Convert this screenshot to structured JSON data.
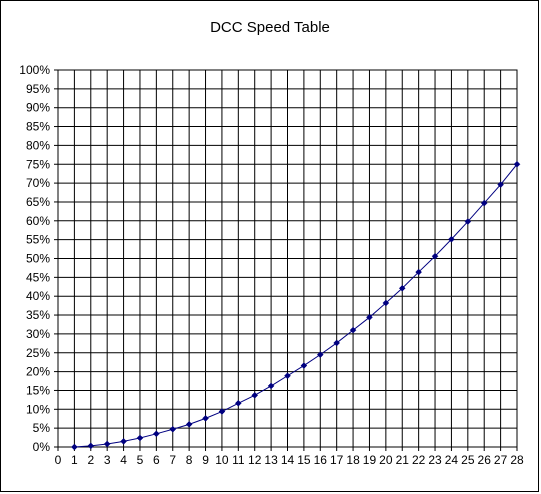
{
  "chart_data": {
    "type": "line",
    "title": "DCC Speed Table",
    "xlabel": "",
    "ylabel": "",
    "x_ticks": [
      "0",
      "1",
      "2",
      "3",
      "4",
      "5",
      "6",
      "7",
      "8",
      "9",
      "10",
      "11",
      "12",
      "13",
      "14",
      "15",
      "16",
      "17",
      "18",
      "19",
      "20",
      "21",
      "22",
      "23",
      "24",
      "25",
      "26",
      "27",
      "28"
    ],
    "y_ticks": [
      "0%",
      "5%",
      "10%",
      "15%",
      "20%",
      "25%",
      "30%",
      "35%",
      "40%",
      "45%",
      "50%",
      "55%",
      "60%",
      "65%",
      "70%",
      "75%",
      "80%",
      "85%",
      "90%",
      "95%",
      "100%"
    ],
    "xlim": [
      0,
      28
    ],
    "ylim": [
      0,
      100
    ],
    "grid": true,
    "legend": "none",
    "series": [
      {
        "color": "#000080",
        "marker": "diamond",
        "points": [
          [
            1,
            0.0
          ],
          [
            2,
            0.3
          ],
          [
            3,
            0.8
          ],
          [
            4,
            1.5
          ],
          [
            5,
            2.4
          ],
          [
            6,
            3.5
          ],
          [
            7,
            4.7
          ],
          [
            8,
            6.0
          ],
          [
            9,
            7.6
          ],
          [
            10,
            9.4
          ],
          [
            11,
            11.6
          ],
          [
            12,
            13.7
          ],
          [
            13,
            16.2
          ],
          [
            14,
            18.9
          ],
          [
            15,
            21.6
          ],
          [
            16,
            24.5
          ],
          [
            17,
            27.6
          ],
          [
            18,
            31.0
          ],
          [
            19,
            34.4
          ],
          [
            20,
            38.2
          ],
          [
            21,
            42.1
          ],
          [
            22,
            46.4
          ],
          [
            23,
            50.6
          ],
          [
            24,
            55.1
          ],
          [
            25,
            59.8
          ],
          [
            26,
            64.7
          ],
          [
            27,
            69.6
          ],
          [
            28,
            75.0
          ]
        ]
      }
    ]
  }
}
